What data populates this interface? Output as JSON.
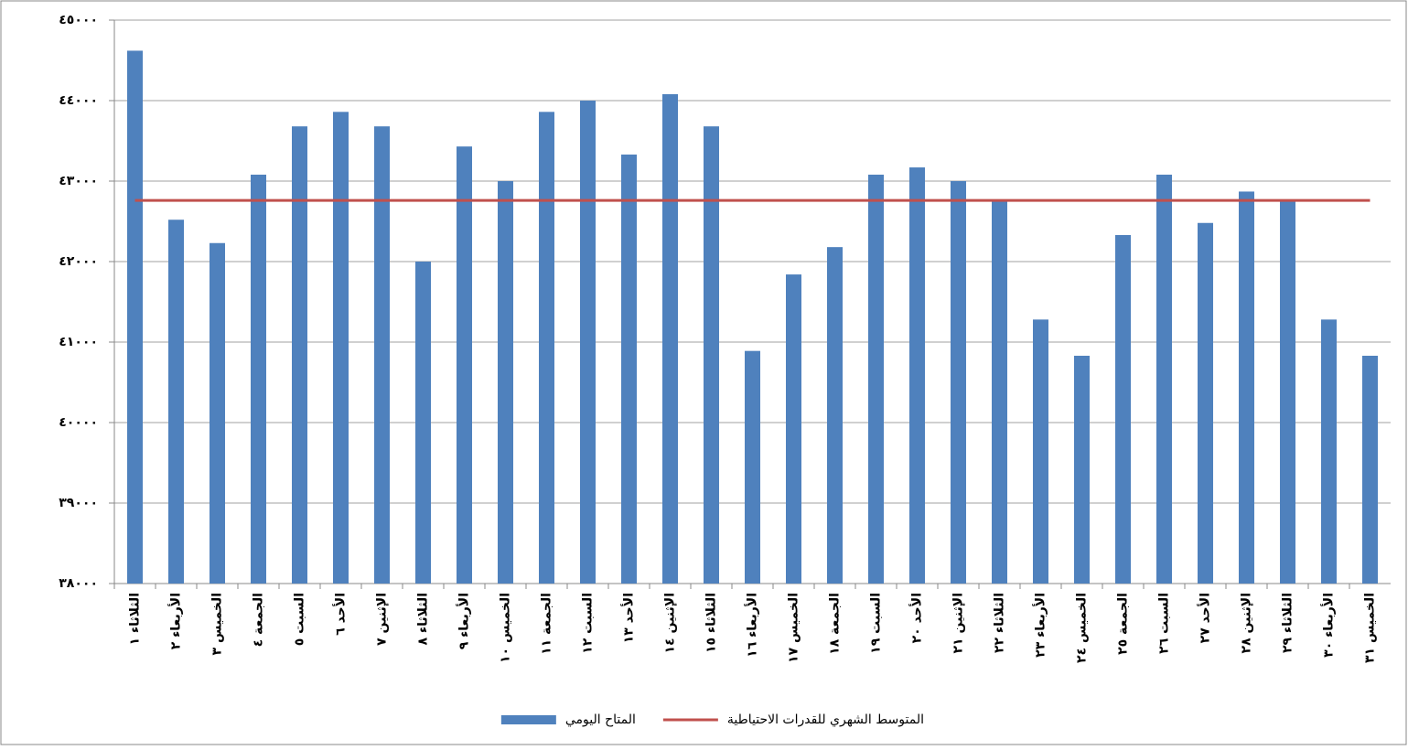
{
  "chart_data": {
    "type": "bar-line",
    "categories": [
      "الثلاثاء ١",
      "الأربعاء ٢",
      "الخميس ٣",
      "الجمعة ٤",
      "السبت ٥",
      "الأحد ٦",
      "الإثنين ٧",
      "الثلاثاء ٨",
      "الأربعاء ٩",
      "الخميس ١٠",
      "الجمعة ١١",
      "السبت ١٢",
      "الأحد ١٣",
      "الإثنين ١٤",
      "الثلاثاء ١٥",
      "الأربعاء ١٦",
      "الخميس ١٧",
      "الجمعة ١٨",
      "السبت ١٩",
      "الأحد ٢٠",
      "الإثنين ٢١",
      "الثلاثاء ٢٢",
      "الأربعاء ٢٣",
      "الخميس ٢٤",
      "الجمعة ٢٥",
      "السبت ٢٦",
      "الأحد ٢٧",
      "الإثنين ٢٨",
      "الثلاثاء ٢٩",
      "الأربعاء ٣٠",
      "الخميس ٣١"
    ],
    "series": [
      {
        "name": "المتاح اليومي",
        "type": "bar",
        "color": "#4f81bd",
        "values": [
          44620,
          42520,
          42230,
          43080,
          43680,
          43860,
          43680,
          42000,
          43430,
          43000,
          43860,
          44000,
          43330,
          44080,
          43680,
          40890,
          41840,
          42180,
          43080,
          43170,
          43000,
          42760,
          41280,
          40830,
          42330,
          43080,
          42480,
          42870,
          42760,
          41280,
          40830
        ]
      },
      {
        "name": "المتوسط الشهري للقدرات الاحتياطية",
        "type": "line",
        "color": "#c0504d",
        "values": [
          42760,
          42760,
          42760,
          42760,
          42760,
          42760,
          42760,
          42760,
          42760,
          42760,
          42760,
          42760,
          42760,
          42760,
          42760,
          42760,
          42760,
          42760,
          42760,
          42760,
          42760,
          42760,
          42760,
          42760,
          42760,
          42760,
          42760,
          42760,
          42760,
          42760,
          42760
        ]
      }
    ],
    "ylim": [
      38000,
      45000
    ],
    "yticks": [
      {
        "value": 38000,
        "label": "٣٨٠٠٠"
      },
      {
        "value": 39000,
        "label": "٣٩٠٠٠"
      },
      {
        "value": 40000,
        "label": "٤٠٠٠٠"
      },
      {
        "value": 41000,
        "label": "٤١٠٠٠"
      },
      {
        "value": 42000,
        "label": "٤٢٠٠٠"
      },
      {
        "value": 43000,
        "label": "٤٣٠٠٠"
      },
      {
        "value": 44000,
        "label": "٤٤٠٠٠"
      },
      {
        "value": 45000,
        "label": "٤٥٠٠٠"
      }
    ],
    "grid": true,
    "legend": "bottom"
  }
}
